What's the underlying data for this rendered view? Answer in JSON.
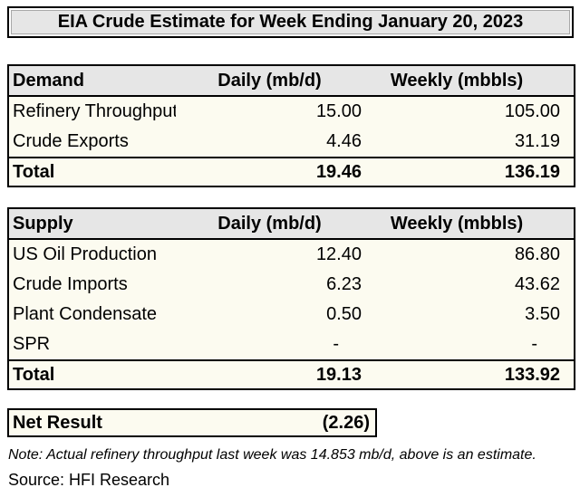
{
  "title": "EIA Crude Estimate for Week Ending January 20, 2023",
  "colors": {
    "header_bg": "#e6e6e6",
    "body_bg": "#fcfbf0",
    "border": "#000000",
    "text": "#000000"
  },
  "demand_table": {
    "header": [
      "Demand",
      "Daily (mb/d)",
      "Weekly (mbbls)"
    ],
    "rows": [
      {
        "label": "Refinery Throughput",
        "daily": "15.00",
        "weekly": "105.00"
      },
      {
        "label": "Crude Exports",
        "daily": "4.46",
        "weekly": "31.19"
      }
    ],
    "total": {
      "label": "Total",
      "daily": "19.46",
      "weekly": "136.19"
    }
  },
  "supply_table": {
    "header": [
      "Supply",
      "Daily (mb/d)",
      "Weekly (mbbls)"
    ],
    "rows": [
      {
        "label": "US Oil Production",
        "daily": "12.40",
        "weekly": "86.80"
      },
      {
        "label": "Crude Imports",
        "daily": "6.23",
        "weekly": "43.62"
      },
      {
        "label": "Plant Condensate",
        "daily": "0.50",
        "weekly": "3.50"
      },
      {
        "label": "SPR",
        "daily": "-",
        "weekly": "-"
      }
    ],
    "total": {
      "label": "Total",
      "daily": "19.13",
      "weekly": "133.92"
    }
  },
  "net_result": {
    "label": "Net Result",
    "value": "(2.26)"
  },
  "note": "Note: Actual refinery throughput last week was 14.853 mb/d, above is an estimate.",
  "source": "Source: HFI Research",
  "chart_data": [
    {
      "type": "table",
      "title": "EIA Crude Estimate for Week Ending January 20, 2023",
      "section": "Demand",
      "columns": [
        "Demand",
        "Daily (mb/d)",
        "Weekly (mbbls)"
      ],
      "rows": [
        [
          "Refinery Throughput",
          15.0,
          105.0
        ],
        [
          "Crude Exports",
          4.46,
          31.19
        ],
        [
          "Total",
          19.46,
          136.19
        ]
      ]
    },
    {
      "type": "table",
      "section": "Supply",
      "columns": [
        "Supply",
        "Daily (mb/d)",
        "Weekly (mbbls)"
      ],
      "rows": [
        [
          "US Oil Production",
          12.4,
          86.8
        ],
        [
          "Crude Imports",
          6.23,
          43.62
        ],
        [
          "Plant Condensate",
          0.5,
          3.5
        ],
        [
          "SPR",
          null,
          null
        ],
        [
          "Total",
          19.13,
          133.92
        ]
      ]
    },
    {
      "type": "table",
      "section": "Net Result",
      "columns": [
        "Net Result"
      ],
      "rows": [
        [
          "Net Result",
          -2.26
        ]
      ]
    }
  ]
}
